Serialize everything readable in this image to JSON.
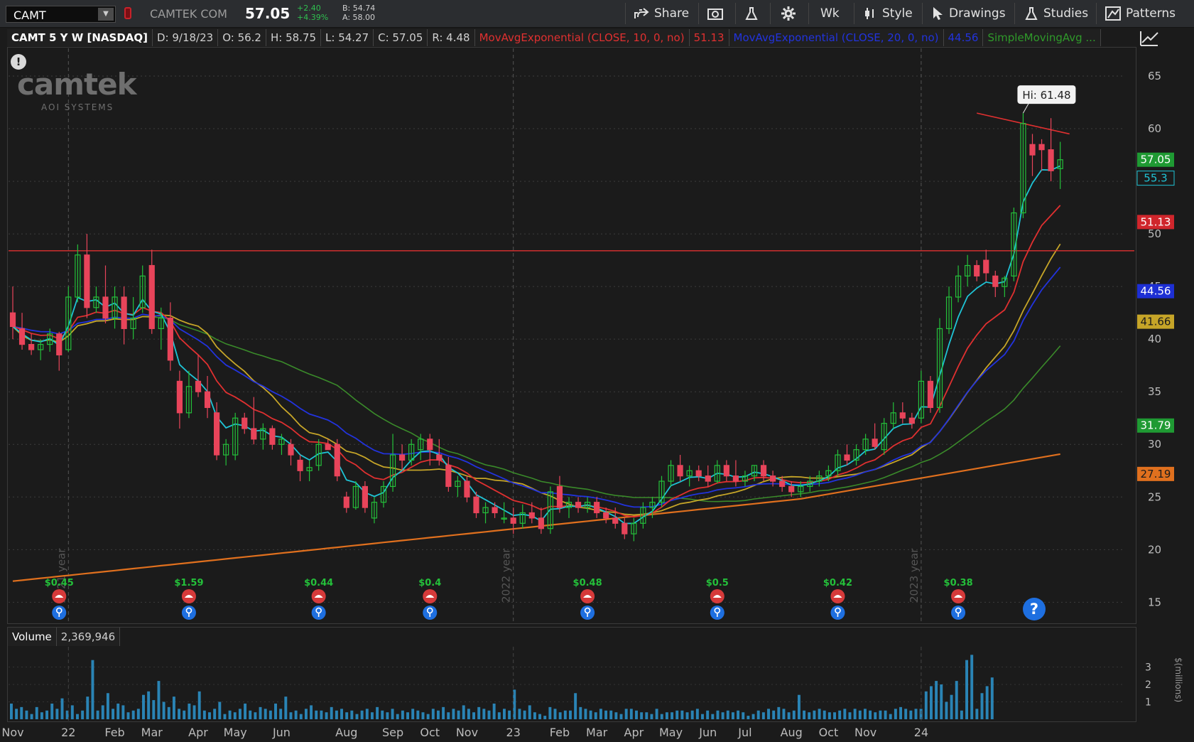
{
  "toolbar": {
    "symbol": "CAMT",
    "company": "CAMTEK COM",
    "last_price": "57.05",
    "change": "+2.40",
    "change_pct": "+4.39%",
    "bid": "B: 54.74",
    "ask": "A: 58.00",
    "share_label": "Share",
    "interval_label": "Wk",
    "style_label": "Style",
    "drawings_label": "Drawings",
    "studies_label": "Studies",
    "patterns_label": "Patterns",
    "colors": {
      "accent": "#2fbf4f",
      "bg": "#2b2d30"
    }
  },
  "infobar": {
    "title": "CAMT 5 Y W [NASDAQ]",
    "date": "D: 9/18/23",
    "open": "O: 56.2",
    "high": "H: 58.75",
    "low": "L: 54.27",
    "close": "C: 57.05",
    "range": "R: 4.48",
    "study1": "MovAvgExponential (CLOSE, 10, 0, no)",
    "study1_value": "51.13",
    "study2": "MovAvgExponential (CLOSE, 20, 0, no)",
    "study2_value": "44.56",
    "study3": "SimpleMovingAvg ..."
  },
  "logo": {
    "word": "camtek",
    "sub": "AOI SYSTEMS"
  },
  "volume": {
    "label": "Volume",
    "value": "2,369,946",
    "units": "$(millions)"
  },
  "chart_data": {
    "type": "candlestick",
    "title": "CAMT 5 Y W [NASDAQ]",
    "ylim": [
      13.2,
      67.5
    ],
    "price_ticks": [
      65,
      60,
      55,
      50,
      45,
      40,
      35,
      30,
      25,
      20,
      15
    ],
    "x_labels": [
      {
        "label": "Nov",
        "x": 0
      },
      {
        "label": "22",
        "x": 6
      },
      {
        "label": "Feb",
        "x": 11
      },
      {
        "label": "Mar",
        "x": 15
      },
      {
        "label": "Apr",
        "x": 20
      },
      {
        "label": "May",
        "x": 24
      },
      {
        "label": "Jun",
        "x": 29
      },
      {
        "label": "Aug",
        "x": 36
      },
      {
        "label": "Sep",
        "x": 41
      },
      {
        "label": "Oct",
        "x": 45
      },
      {
        "label": "Nov",
        "x": 49
      },
      {
        "label": "23",
        "x": 54
      },
      {
        "label": "Feb",
        "x": 59
      },
      {
        "label": "Mar",
        "x": 63
      },
      {
        "label": "Apr",
        "x": 67
      },
      {
        "label": "May",
        "x": 71
      },
      {
        "label": "Jun",
        "x": 75
      },
      {
        "label": "Jul",
        "x": 79
      },
      {
        "label": "Aug",
        "x": 84
      },
      {
        "label": "Oct",
        "x": 88
      },
      {
        "label": "Nov",
        "x": 92
      },
      {
        "label": "24",
        "x": 98
      }
    ],
    "year_labels": [
      {
        "label": "2021 year",
        "x": 6
      },
      {
        "label": "2022 year",
        "x": 54
      },
      {
        "label": "2023 year",
        "x": 98
      }
    ],
    "candles": [
      {
        "o": 42.5,
        "h": 45,
        "l": 40,
        "c": 41.2
      },
      {
        "o": 41,
        "h": 42.5,
        "l": 39,
        "c": 39.5
      },
      {
        "o": 39.5,
        "h": 40.5,
        "l": 38.5,
        "c": 39
      },
      {
        "o": 39,
        "h": 40,
        "l": 38,
        "c": 39.5
      },
      {
        "o": 39.5,
        "h": 41,
        "l": 38.8,
        "c": 40.5
      },
      {
        "o": 40.5,
        "h": 40.7,
        "l": 37,
        "c": 38.5
      },
      {
        "o": 39,
        "h": 45,
        "l": 38.8,
        "c": 44
      },
      {
        "o": 44,
        "h": 49,
        "l": 43.5,
        "c": 48
      },
      {
        "o": 48,
        "h": 50,
        "l": 42,
        "c": 43
      },
      {
        "o": 43,
        "h": 45,
        "l": 42.5,
        "c": 44
      },
      {
        "o": 44,
        "h": 47,
        "l": 41.5,
        "c": 42
      },
      {
        "o": 42,
        "h": 45,
        "l": 41,
        "c": 44
      },
      {
        "o": 44,
        "h": 45,
        "l": 39.5,
        "c": 41
      },
      {
        "o": 41,
        "h": 44,
        "l": 40,
        "c": 42
      },
      {
        "o": 43,
        "h": 47,
        "l": 42.5,
        "c": 46
      },
      {
        "o": 47,
        "h": 48.5,
        "l": 40.5,
        "c": 41
      },
      {
        "o": 41,
        "h": 43,
        "l": 39,
        "c": 42
      },
      {
        "o": 42,
        "h": 43.5,
        "l": 37,
        "c": 38
      },
      {
        "o": 36,
        "h": 37,
        "l": 31.5,
        "c": 33
      },
      {
        "o": 33,
        "h": 37,
        "l": 32.5,
        "c": 35.5
      },
      {
        "o": 36,
        "h": 38.5,
        "l": 34.5,
        "c": 35
      },
      {
        "o": 35,
        "h": 36.5,
        "l": 32.5,
        "c": 33.5
      },
      {
        "o": 33,
        "h": 34,
        "l": 28.5,
        "c": 29
      },
      {
        "o": 29,
        "h": 30.5,
        "l": 28,
        "c": 30
      },
      {
        "o": 29,
        "h": 33,
        "l": 28.5,
        "c": 32.5
      },
      {
        "o": 32.5,
        "h": 33,
        "l": 31,
        "c": 31.5
      },
      {
        "o": 31.5,
        "h": 34.5,
        "l": 30,
        "c": 30.5
      },
      {
        "o": 30.5,
        "h": 32,
        "l": 29.5,
        "c": 31.5
      },
      {
        "o": 31.5,
        "h": 31.8,
        "l": 29.5,
        "c": 30
      },
      {
        "o": 30,
        "h": 31,
        "l": 29,
        "c": 30.5
      },
      {
        "o": 30,
        "h": 30.5,
        "l": 28,
        "c": 29
      },
      {
        "o": 28.5,
        "h": 29,
        "l": 26.5,
        "c": 27.5
      },
      {
        "o": 27.5,
        "h": 28.5,
        "l": 26.5,
        "c": 27.8
      },
      {
        "o": 28,
        "h": 30.5,
        "l": 27.5,
        "c": 30
      },
      {
        "o": 30,
        "h": 30.5,
        "l": 29.5,
        "c": 29.5
      },
      {
        "o": 30,
        "h": 30.5,
        "l": 26.5,
        "c": 27
      },
      {
        "o": 25,
        "h": 25.5,
        "l": 23.5,
        "c": 24
      },
      {
        "o": 24,
        "h": 26.5,
        "l": 23.8,
        "c": 26
      },
      {
        "o": 26,
        "h": 26.5,
        "l": 23.5,
        "c": 24
      },
      {
        "o": 23,
        "h": 25,
        "l": 22.5,
        "c": 24.5
      },
      {
        "o": 24.5,
        "h": 26.5,
        "l": 24,
        "c": 26
      },
      {
        "o": 26,
        "h": 31,
        "l": 25.5,
        "c": 29
      },
      {
        "o": 29,
        "h": 30,
        "l": 27.5,
        "c": 28.5
      },
      {
        "o": 28.5,
        "h": 30.5,
        "l": 28,
        "c": 30
      },
      {
        "o": 29.5,
        "h": 31,
        "l": 28.5,
        "c": 30.5
      },
      {
        "o": 30.5,
        "h": 31,
        "l": 28,
        "c": 29.5
      },
      {
        "o": 29,
        "h": 30.5,
        "l": 28,
        "c": 28.5
      },
      {
        "o": 28,
        "h": 28.8,
        "l": 25.5,
        "c": 26
      },
      {
        "o": 26,
        "h": 27,
        "l": 25,
        "c": 26.5
      },
      {
        "o": 26.5,
        "h": 27,
        "l": 24.5,
        "c": 25
      },
      {
        "o": 25,
        "h": 25.5,
        "l": 23,
        "c": 23.5
      },
      {
        "o": 23.5,
        "h": 24.5,
        "l": 22.5,
        "c": 24
      },
      {
        "o": 24,
        "h": 24.5,
        "l": 23,
        "c": 23.5
      },
      {
        "o": 23,
        "h": 24.5,
        "l": 22.5,
        "c": 23
      },
      {
        "o": 23,
        "h": 24,
        "l": 21.5,
        "c": 22.5
      },
      {
        "o": 22.5,
        "h": 24.3,
        "l": 22,
        "c": 23.5
      },
      {
        "o": 23.5,
        "h": 24.5,
        "l": 22.5,
        "c": 23
      },
      {
        "o": 23,
        "h": 24,
        "l": 21.5,
        "c": 22
      },
      {
        "o": 22,
        "h": 26,
        "l": 21.5,
        "c": 25.5
      },
      {
        "o": 26,
        "h": 27,
        "l": 23.5,
        "c": 24
      },
      {
        "o": 24,
        "h": 25,
        "l": 23,
        "c": 24.5
      },
      {
        "o": 24.5,
        "h": 25,
        "l": 23.5,
        "c": 24
      },
      {
        "o": 24,
        "h": 25,
        "l": 23.5,
        "c": 24.5
      },
      {
        "o": 24.5,
        "h": 25,
        "l": 23,
        "c": 23.5
      },
      {
        "o": 23.5,
        "h": 24,
        "l": 22.5,
        "c": 23
      },
      {
        "o": 23,
        "h": 24,
        "l": 22,
        "c": 22.5
      },
      {
        "o": 22.5,
        "h": 23,
        "l": 21,
        "c": 21.5
      },
      {
        "o": 21.5,
        "h": 23,
        "l": 20.8,
        "c": 22.5
      },
      {
        "o": 22.5,
        "h": 24.5,
        "l": 22,
        "c": 24
      },
      {
        "o": 24,
        "h": 25,
        "l": 23,
        "c": 24.5
      },
      {
        "o": 24.5,
        "h": 27,
        "l": 24,
        "c": 26.5
      },
      {
        "o": 26.5,
        "h": 28.5,
        "l": 26,
        "c": 28
      },
      {
        "o": 28,
        "h": 29,
        "l": 26.5,
        "c": 27
      },
      {
        "o": 27,
        "h": 28,
        "l": 26,
        "c": 27.5
      },
      {
        "o": 27.5,
        "h": 28,
        "l": 26.5,
        "c": 27
      },
      {
        "o": 27,
        "h": 28,
        "l": 26,
        "c": 26.5
      },
      {
        "o": 26.5,
        "h": 28.5,
        "l": 26.3,
        "c": 28
      },
      {
        "o": 28,
        "h": 28.5,
        "l": 26.5,
        "c": 27
      },
      {
        "o": 27,
        "h": 28.5,
        "l": 26,
        "c": 26.5
      },
      {
        "o": 26.5,
        "h": 27.5,
        "l": 26,
        "c": 27
      },
      {
        "o": 27,
        "h": 28,
        "l": 26.5,
        "c": 28
      },
      {
        "o": 28,
        "h": 28.5,
        "l": 26.5,
        "c": 27
      },
      {
        "o": 27,
        "h": 27.5,
        "l": 26,
        "c": 26.5
      },
      {
        "o": 26.5,
        "h": 27,
        "l": 25.5,
        "c": 26
      },
      {
        "o": 26,
        "h": 26.5,
        "l": 25,
        "c": 25.5
      },
      {
        "o": 25.5,
        "h": 26.5,
        "l": 25,
        "c": 26
      },
      {
        "o": 26,
        "h": 27,
        "l": 25.5,
        "c": 26.5
      },
      {
        "o": 26.5,
        "h": 27.5,
        "l": 26,
        "c": 27
      },
      {
        "o": 27,
        "h": 28,
        "l": 26.5,
        "c": 27.5
      },
      {
        "o": 27.5,
        "h": 29.5,
        "l": 27,
        "c": 29
      },
      {
        "o": 29,
        "h": 30,
        "l": 28,
        "c": 28.5
      },
      {
        "o": 28.5,
        "h": 30,
        "l": 28,
        "c": 29.5
      },
      {
        "o": 29.5,
        "h": 31,
        "l": 29,
        "c": 30.5
      },
      {
        "o": 30.5,
        "h": 32,
        "l": 29.5,
        "c": 29.8
      },
      {
        "o": 29.5,
        "h": 32.5,
        "l": 29,
        "c": 32
      },
      {
        "o": 32,
        "h": 34,
        "l": 31.5,
        "c": 33
      },
      {
        "o": 33,
        "h": 34,
        "l": 32,
        "c": 32.5
      },
      {
        "o": 32.5,
        "h": 33,
        "l": 31.5,
        "c": 32
      },
      {
        "o": 32.5,
        "h": 37,
        "l": 32,
        "c": 36
      },
      {
        "o": 36,
        "h": 36.5,
        "l": 33,
        "c": 33.5
      },
      {
        "o": 33.5,
        "h": 42,
        "l": 33,
        "c": 41
      },
      {
        "o": 41,
        "h": 45,
        "l": 40.5,
        "c": 44
      },
      {
        "o": 44,
        "h": 47,
        "l": 43.5,
        "c": 46
      },
      {
        "o": 46,
        "h": 48,
        "l": 45,
        "c": 47
      },
      {
        "o": 47,
        "h": 47.5,
        "l": 45.5,
        "c": 46
      },
      {
        "o": 47.5,
        "h": 48.5,
        "l": 45.5,
        "c": 46.3
      },
      {
        "o": 46,
        "h": 46.5,
        "l": 44,
        "c": 45
      },
      {
        "o": 45,
        "h": 46,
        "l": 44,
        "c": 45.8
      },
      {
        "o": 46,
        "h": 52.5,
        "l": 45.5,
        "c": 52
      },
      {
        "o": 52,
        "h": 61.48,
        "l": 51.5,
        "c": 60.5
      },
      {
        "o": 58.5,
        "h": 59.5,
        "l": 55.5,
        "c": 57.5
      },
      {
        "o": 58.5,
        "h": 59,
        "l": 56,
        "c": 58
      },
      {
        "o": 58,
        "h": 61,
        "l": 55,
        "c": 56
      },
      {
        "o": 56.2,
        "h": 58.75,
        "l": 54.27,
        "c": 57.05
      }
    ],
    "volume": {
      "ticks": [
        1,
        2,
        3
      ],
      "ylim": [
        0,
        4
      ],
      "values": [
        0.9,
        0.6,
        0.7,
        0.5,
        0.3,
        0.7,
        0.4,
        0.5,
        0.9,
        0.6,
        1.2,
        0.5,
        0.8,
        0.3,
        0.5,
        1.3,
        3.4,
        0.5,
        0.8,
        1.5,
        0.6,
        0.9,
        0.8,
        0.4,
        0.5,
        0.6,
        1.4,
        1.6,
        1.1,
        2.2,
        1.0,
        0.7,
        1.3,
        0.6,
        0.5,
        0.9,
        0.8,
        1.6,
        0.5,
        0.4,
        0.6,
        1.0,
        0.3,
        0.5,
        0.4,
        0.6,
        0.9,
        0.5,
        0.4,
        0.7,
        0.6,
        0.5,
        0.9,
        0.6,
        1.3,
        0.4,
        0.5,
        0.3,
        0.6,
        0.8,
        0.5,
        0.5,
        0.4,
        0.7,
        0.5,
        0.6,
        0.4,
        0.5,
        0.3,
        0.5,
        0.6,
        0.4,
        0.7,
        0.5,
        0.4,
        0.6,
        0.3,
        0.5,
        0.4,
        0.6,
        0.5,
        0.4,
        0.3,
        0.6,
        0.5,
        0.7,
        0.4,
        0.6,
        0.5,
        0.8,
        0.6,
        0.4,
        0.7,
        0.6,
        0.5,
        0.9,
        0.4,
        0.6,
        0.5,
        1.7,
        0.6,
        0.5,
        0.8,
        0.4,
        0.3,
        0.2,
        0.7,
        0.6,
        0.4,
        0.5,
        0.5,
        1.5,
        0.7,
        0.6,
        0.5,
        0.4,
        0.6,
        0.5,
        0.5,
        0.4,
        0.3,
        0.6,
        0.6,
        0.5,
        0.4,
        0.4,
        0.3,
        0.6,
        0.3,
        0.4,
        0.4,
        0.5,
        0.5,
        0.4,
        0.5,
        0.6,
        0.3,
        0.5,
        0.3,
        0.5,
        0.4,
        0.5,
        0.4,
        0.5,
        0.4,
        0.2,
        0.3,
        0.5,
        0.4,
        0.6,
        0.5,
        0.7,
        0.6,
        0.4,
        0.5,
        1.4,
        0.5,
        0.4,
        0.5,
        0.6,
        0.5,
        0.4,
        0.4,
        0.5,
        0.6,
        0.4,
        0.6,
        0.5,
        0.6,
        0.5,
        0.4,
        0.5,
        0.5,
        0.3,
        0.6,
        0.7,
        0.6,
        0.5,
        0.6,
        0.6,
        1.6,
        1.9,
        2.2,
        2.0,
        1.0,
        1.4,
        2.2,
        0.5,
        3.4,
        3.7,
        0.6,
        1.5,
        1.9,
        2.4
      ],
      "colors": {
        "bar": "#2a84b5"
      }
    },
    "moving_averages": [
      {
        "name": "MovAvgExponential (CLOSE, 10, 0, no)",
        "label": "51.13",
        "color": "#e03030"
      },
      {
        "name": "MovAvgExponential (CLOSE, 20, 0, no)",
        "label": "44.56",
        "color": "#2233dd"
      },
      {
        "name": "SimpleMovingAvg ...",
        "label": "31.79",
        "color": "#3a8a2a"
      },
      {
        "name": "",
        "label": "55.3",
        "color": "#1fc4d6"
      },
      {
        "name": "",
        "label": "41.66",
        "color": "#c6a528"
      },
      {
        "name": "",
        "label": "27.19",
        "color": "#e0701e"
      }
    ],
    "last_price_label": "57.05",
    "horizontal_line": 48.4,
    "trendline": {
      "from": [
        104,
        61.48
      ],
      "to": [
        114,
        59.5
      ]
    },
    "hi_annotation": "Hi: 61.48",
    "dividends": [
      {
        "label": "$0.45",
        "x": 5
      },
      {
        "label": "$1.59",
        "x": 19
      },
      {
        "label": "$0.44",
        "x": 33
      },
      {
        "label": "$0.4",
        "x": 45
      },
      {
        "label": "$0.48",
        "x": 62
      },
      {
        "label": "$0.5",
        "x": 76
      },
      {
        "label": "$0.42",
        "x": 89
      },
      {
        "label": "$0.38",
        "x": 102
      }
    ],
    "colors": {
      "up": "#24c03a",
      "down": "#e8445a",
      "grid": "#3c3c3c"
    }
  }
}
